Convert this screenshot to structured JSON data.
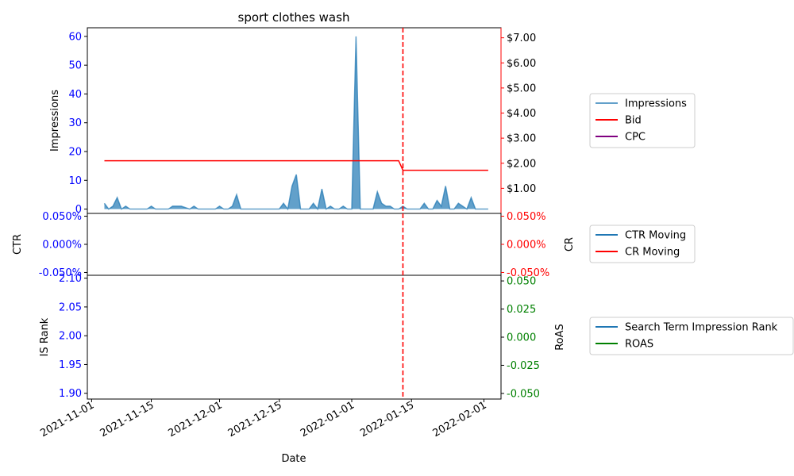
{
  "chart_data": {
    "type": "line",
    "title": "sport clothes wash",
    "xlabel": "Date",
    "x_ticks": [
      "2021-11-01",
      "2021-11-15",
      "2021-12-01",
      "2021-12-15",
      "2022-01-01",
      "2022-01-15",
      "2022-02-01"
    ],
    "x_range": [
      "2021-10-31",
      "2022-02-05"
    ],
    "marker_date": "2022-01-13",
    "colors": {
      "impressions": "#1f77b4",
      "bid": "#ff0000",
      "cpc": "#800080",
      "ctr": "#1f77b4",
      "cr": "#ff0000",
      "rank": "#1f77b4",
      "roas": "#008000",
      "marker": "#ff0000",
      "left_ticks": "#0000ff"
    },
    "panels": [
      {
        "ylabel_left": "Impressions",
        "ylabel_right": "",
        "ylim_left": [
          -1.5,
          63
        ],
        "ylim_right": [
          0.0,
          7.4
        ],
        "yticks_left": [
          0,
          10,
          20,
          30,
          40,
          50,
          60
        ],
        "yticks_right": [
          "$1.00",
          "$2.00",
          "$3.00",
          "$4.00",
          "$5.00",
          "$6.00",
          "$7.00"
        ],
        "yticks_right_values": [
          1,
          2,
          3,
          4,
          5,
          6,
          7
        ],
        "legend": [
          "Impressions",
          "Bid",
          "CPC"
        ],
        "series": [
          {
            "name": "Impressions",
            "axis": "left",
            "style": "area",
            "x": [
              "2021-11-04",
              "2021-11-05",
              "2021-11-06",
              "2021-11-07",
              "2021-11-08",
              "2021-11-09",
              "2021-11-10",
              "2021-11-11",
              "2021-11-12",
              "2021-11-13",
              "2021-11-14",
              "2021-11-15",
              "2021-11-16",
              "2021-11-17",
              "2021-11-18",
              "2021-11-19",
              "2021-11-20",
              "2021-11-21",
              "2021-11-22",
              "2021-11-23",
              "2021-11-24",
              "2021-11-25",
              "2021-11-26",
              "2021-11-27",
              "2021-11-28",
              "2021-11-29",
              "2021-11-30",
              "2021-12-01",
              "2021-12-02",
              "2021-12-03",
              "2021-12-04",
              "2021-12-05",
              "2021-12-06",
              "2021-12-07",
              "2021-12-08",
              "2021-12-09",
              "2021-12-10",
              "2021-12-11",
              "2021-12-12",
              "2021-12-13",
              "2021-12-14",
              "2021-12-15",
              "2021-12-16",
              "2021-12-17",
              "2021-12-18",
              "2021-12-19",
              "2021-12-20",
              "2021-12-21",
              "2021-12-22",
              "2021-12-23",
              "2021-12-24",
              "2021-12-25",
              "2021-12-26",
              "2021-12-27",
              "2021-12-28",
              "2021-12-29",
              "2021-12-30",
              "2021-12-31",
              "2022-01-01",
              "2022-01-02",
              "2022-01-03",
              "2022-01-04",
              "2022-01-05",
              "2022-01-06",
              "2022-01-07",
              "2022-01-08",
              "2022-01-09",
              "2022-01-10",
              "2022-01-11",
              "2022-01-12",
              "2022-01-13",
              "2022-01-14",
              "2022-01-15",
              "2022-01-16",
              "2022-01-17",
              "2022-01-18",
              "2022-01-19",
              "2022-01-20",
              "2022-01-21",
              "2022-01-22",
              "2022-01-23",
              "2022-01-24",
              "2022-01-25",
              "2022-01-26",
              "2022-01-27",
              "2022-01-28",
              "2022-01-29",
              "2022-01-30",
              "2022-01-31",
              "2022-02-01",
              "2022-02-02"
            ],
            "values": [
              2,
              0,
              1,
              4,
              0,
              1,
              0,
              0,
              0,
              0,
              0,
              1,
              0,
              0,
              0,
              0,
              1,
              1,
              1,
              0.5,
              0,
              1,
              0,
              0,
              0,
              0,
              0,
              1,
              0,
              0,
              1,
              5,
              0,
              0,
              0,
              0,
              0,
              0,
              0,
              0,
              0,
              0,
              2,
              0,
              8,
              12,
              0,
              0,
              0,
              2,
              0,
              7,
              0,
              1,
              0,
              0,
              1,
              0,
              0,
              60,
              0,
              0,
              0,
              0,
              6,
              2,
              1,
              1,
              0,
              0,
              1,
              0,
              0,
              0,
              0,
              2,
              0,
              0,
              3,
              1,
              8,
              0,
              0,
              2,
              1,
              0,
              4,
              0,
              0,
              0,
              0
            ]
          },
          {
            "name": "Bid",
            "axis": "right",
            "style": "line",
            "x": [
              "2021-11-04",
              "2022-01-12",
              "2022-01-13",
              "2022-02-02"
            ],
            "values": [
              2.1,
              2.1,
              1.72,
              1.72
            ]
          },
          {
            "name": "CPC",
            "axis": "right",
            "style": "line",
            "x": [],
            "values": []
          }
        ]
      },
      {
        "ylabel_left": "CTR",
        "ylabel_right": "CR",
        "ylim_left": [
          -0.055,
          0.055
        ],
        "ylim_right": [
          -0.055,
          0.055
        ],
        "yticks_left": [
          "-0.050%",
          "0.000%",
          "0.050%"
        ],
        "yticks_left_values": [
          -0.05,
          0,
          0.05
        ],
        "yticks_right": [
          "-0.050%",
          "0.000%",
          "0.050%"
        ],
        "yticks_right_values": [
          -0.05,
          0,
          0.05
        ],
        "legend": [
          "CTR Moving",
          "CR Moving"
        ],
        "series": [
          {
            "name": "CTR Moving",
            "axis": "left",
            "style": "line",
            "x": [],
            "values": []
          },
          {
            "name": "CR Moving",
            "axis": "right",
            "style": "line",
            "x": [],
            "values": []
          }
        ]
      },
      {
        "ylabel_left": "IS Rank",
        "ylabel_right": "RoAS",
        "ylim_left": [
          1.89,
          2.105
        ],
        "ylim_right": [
          -0.055,
          0.055
        ],
        "yticks_left": [
          "1.90",
          "1.95",
          "2.00",
          "2.05",
          "2.10"
        ],
        "yticks_left_values": [
          1.9,
          1.95,
          2.0,
          2.05,
          2.1
        ],
        "yticks_right": [
          "-0.050",
          "-0.025",
          "0.000",
          "0.025",
          "0.050"
        ],
        "yticks_right_values": [
          -0.05,
          -0.025,
          0,
          0.025,
          0.05
        ],
        "legend": [
          "Search Term Impression Rank",
          "ROAS"
        ],
        "series": [
          {
            "name": "Search Term Impression Rank",
            "axis": "left",
            "style": "line",
            "x": [],
            "values": []
          },
          {
            "name": "ROAS",
            "axis": "right",
            "style": "line",
            "x": [],
            "values": []
          }
        ]
      }
    ]
  }
}
